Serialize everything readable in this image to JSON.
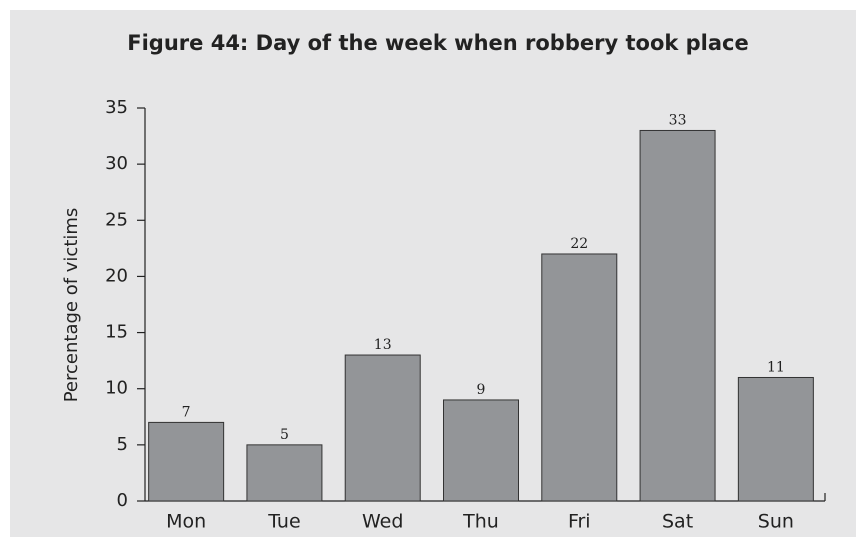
{
  "chart_data": {
    "type": "bar",
    "title": "Figure 44: Day of the week when robbery took place",
    "y_label": "Percentage of victims",
    "categories": [
      "Mon",
      "Tue",
      "Wed",
      "Thu",
      "Fri",
      "Sat",
      "Sun"
    ],
    "values": [
      7,
      5,
      13,
      9,
      22,
      33,
      11
    ],
    "color": "#939598",
    "ylim": [
      0,
      35
    ],
    "yticks": [
      0,
      5,
      10,
      15,
      20,
      25,
      30,
      35
    ],
    "grid": false
  }
}
